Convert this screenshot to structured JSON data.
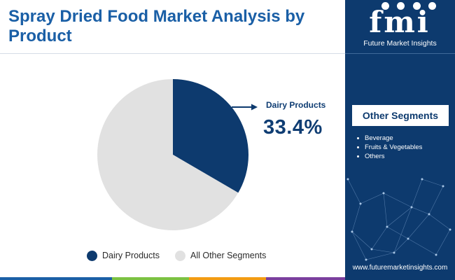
{
  "title": "Spray Dried Food Market Analysis by Product",
  "chart_data": {
    "type": "pie",
    "slices": [
      {
        "label": "Dairy Products",
        "value": 33.4,
        "color": "#0d3a6e"
      },
      {
        "label": "All Other Segments",
        "value": 66.6,
        "color": "#e1e1e1"
      }
    ],
    "callout": {
      "label": "Dairy Products",
      "value": "33.4%"
    },
    "legend": [
      {
        "label": "Dairy Products",
        "color": "#0d3a6e"
      },
      {
        "label": "All Other Segments",
        "color": "#e1e1e1"
      }
    ],
    "legend_position": "bottom"
  },
  "sidebar": {
    "logo_text": "fmi",
    "logo_caption": "Future Market Insights",
    "other_segments_title": "Other Segments",
    "other_segments": [
      "Beverage",
      "Fruits & Vegetables",
      "Others"
    ],
    "website": "www.futuremarketinsights.com"
  },
  "colors": {
    "title": "#1a5fa6",
    "sidebar_bg": "#0d3a6e",
    "bottom_bar": [
      "#1a5fa6",
      "#7cc242",
      "#f39c12",
      "#7b3f9e"
    ]
  }
}
